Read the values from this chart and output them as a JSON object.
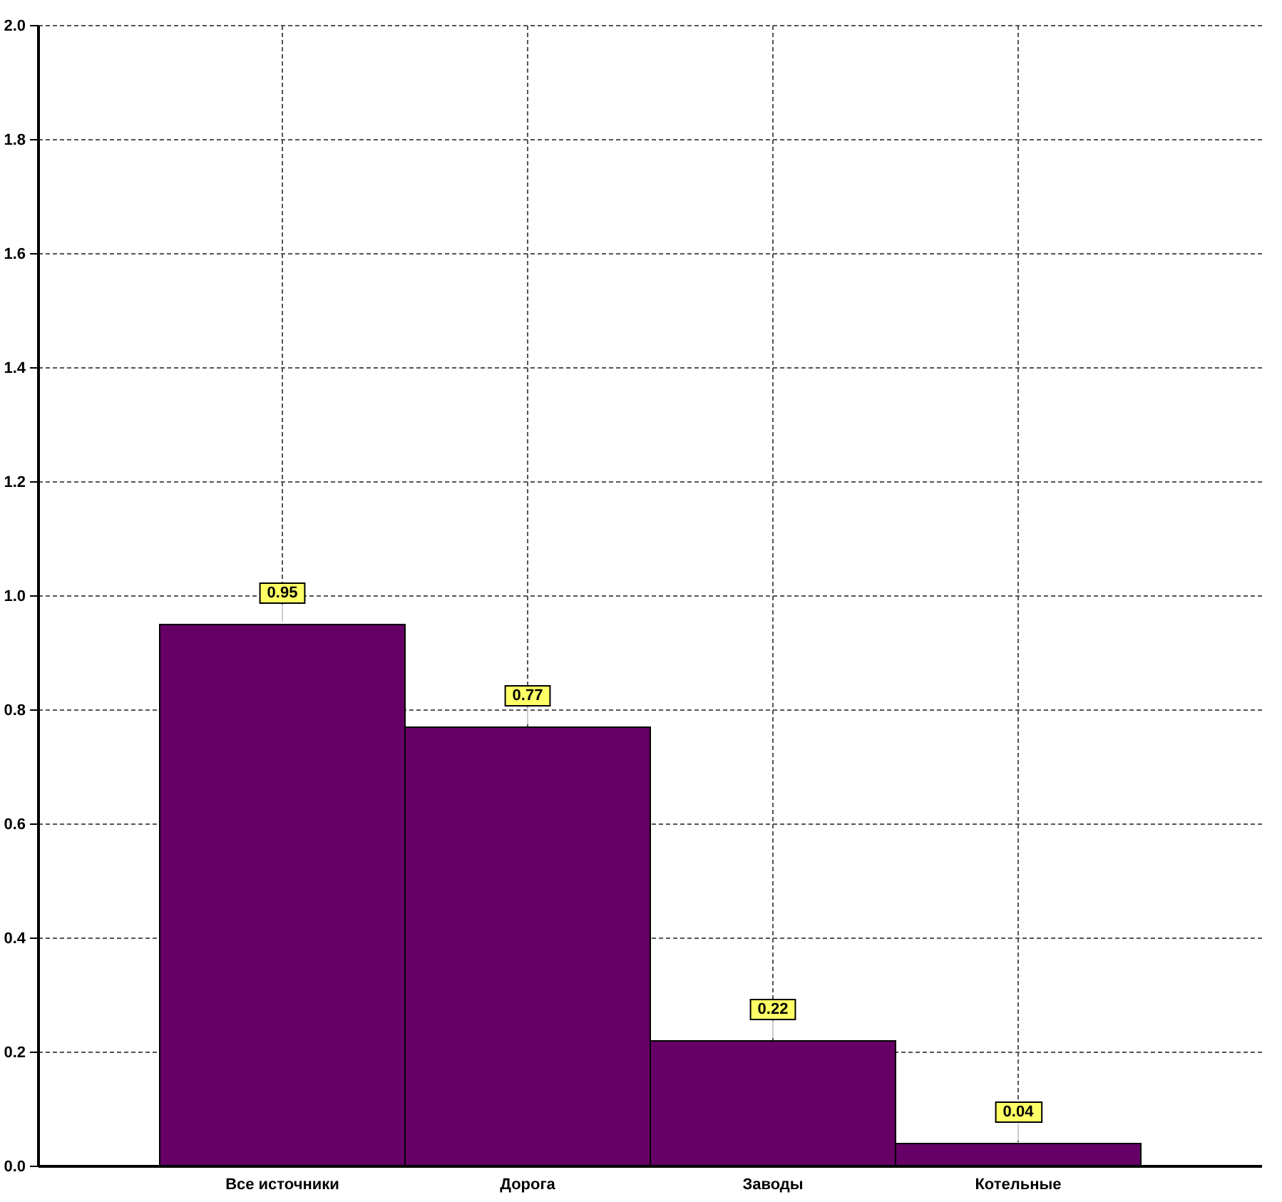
{
  "chart_data": {
    "type": "bar",
    "categories": [
      "Все источники",
      "Дорога",
      "Заводы",
      "Котельные"
    ],
    "values": [
      0.95,
      0.77,
      0.22,
      0.04
    ],
    "color": "#660066",
    "ylim": [
      0,
      2
    ],
    "yticks": [
      {
        "value": 0,
        "label": "0.0"
      },
      0.2,
      0.4,
      0.6,
      0.8,
      {
        "value": 1,
        "label": "1.0"
      },
      1.2,
      1.4,
      1.6,
      1.8,
      {
        "value": 2,
        "label": "2.0"
      }
    ],
    "grid": true,
    "data_labels": true
  }
}
